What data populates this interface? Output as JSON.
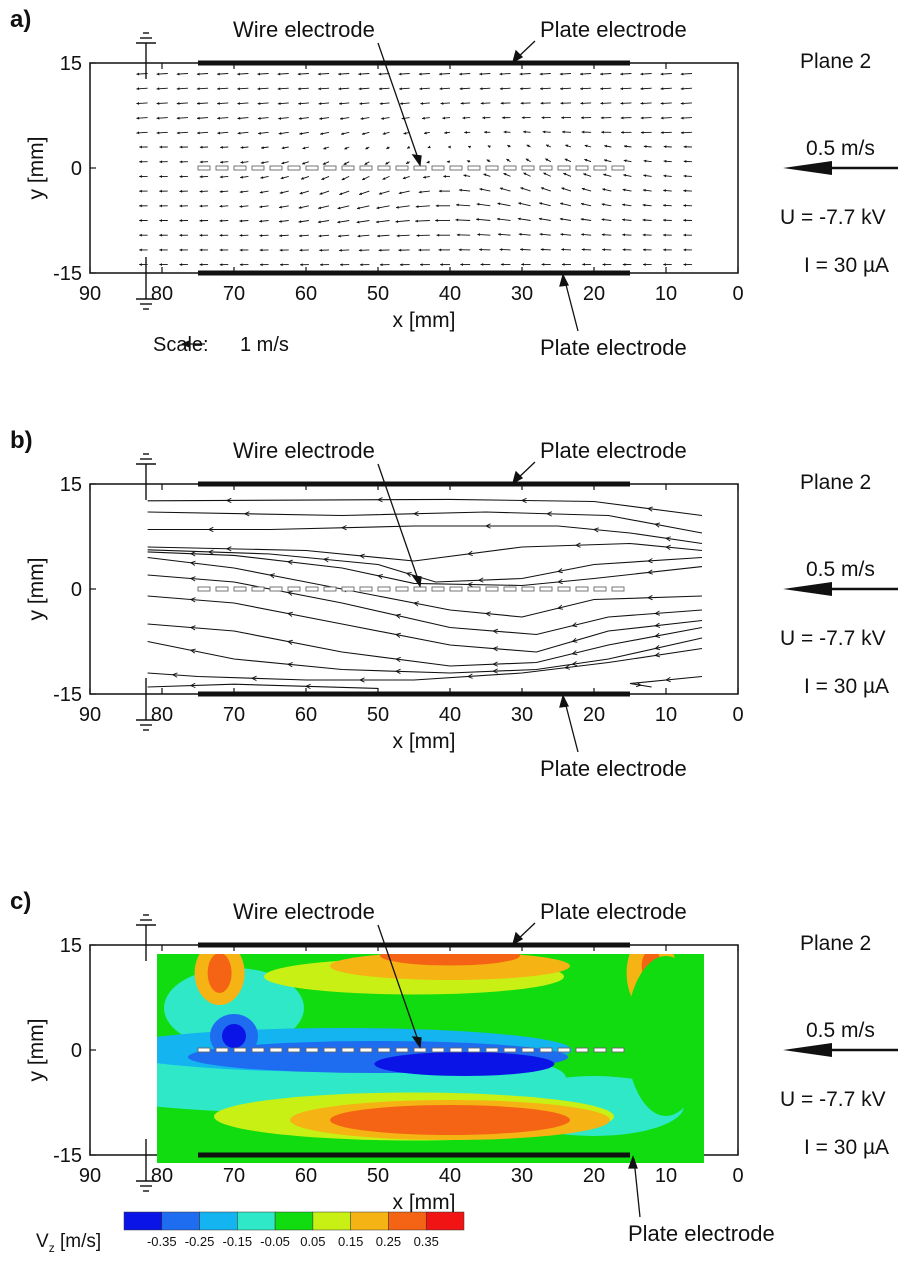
{
  "panels": [
    {
      "label": "a)",
      "kind": "vector",
      "wire_label": "Wire  electrode",
      "plate_top_label": "Plate  electrode",
      "plate_bottom_label": "Plate  electrode",
      "plane": "Plane 2",
      "ref_speed": "0.5 m/s",
      "voltage": "U = -7.7 kV",
      "current": "I = 30 µA",
      "xlabel": "x [mm]",
      "ylabel": "y [mm]",
      "scale_text": "Scale:",
      "scale_value": "1 m/s"
    },
    {
      "label": "b)",
      "kind": "streamline",
      "wire_label": "Wire  electrode",
      "plate_top_label": "Plate  electrode",
      "plate_bottom_label": "Plate  electrode",
      "plane": "Plane 2",
      "ref_speed": "0.5 m/s",
      "voltage": "U = -7.7 kV",
      "current": "I = 30 µA",
      "xlabel": "x [mm]",
      "ylabel": "y [mm]"
    },
    {
      "label": "c)",
      "kind": "contour",
      "wire_label": "Wire  electrode",
      "plate_top_label": "Plate  electrode",
      "plate_bottom_label": "Plate  electrode",
      "plane": "Plane 2",
      "ref_speed": "0.5 m/s",
      "voltage": "U = -7.7 kV",
      "current": "I = 30 µA",
      "xlabel": "x [mm]",
      "ylabel": "y [mm]",
      "colorbar_label_main": "V",
      "colorbar_label_sub": "z",
      "colorbar_label_unit": " [m/s]"
    }
  ],
  "chart_data": [
    {
      "type": "scatter",
      "subtype": "vector-field",
      "x_ticks": [
        "90",
        "80",
        "70",
        "60",
        "50",
        "40",
        "30",
        "20",
        "10",
        "0"
      ],
      "y_ticks": [
        "15",
        "0",
        "-15"
      ],
      "xlim": [
        90,
        0
      ],
      "ylim": [
        -15,
        15
      ],
      "plates_x": [
        75,
        15
      ],
      "wire_y": 0
    },
    {
      "type": "line",
      "subtype": "streamlines",
      "x_ticks": [
        "90",
        "80",
        "70",
        "60",
        "50",
        "40",
        "30",
        "20",
        "10",
        "0"
      ],
      "y_ticks": [
        "15",
        "0",
        "-15"
      ],
      "xlim": [
        90,
        0
      ],
      "ylim": [
        -15,
        15
      ]
    },
    {
      "type": "heatmap",
      "subtype": "contour",
      "x_ticks": [
        "90",
        "80",
        "70",
        "60",
        "50",
        "40",
        "30",
        "20",
        "10",
        "0"
      ],
      "y_ticks": [
        "15",
        "0",
        "-15"
      ],
      "xlim": [
        90,
        0
      ],
      "ylim": [
        -15,
        15
      ],
      "colorbar_ticks": [
        "-0.35",
        "-0.25",
        "-0.15",
        "-0.05",
        "0.05",
        "0.15",
        "0.25",
        "0.35"
      ],
      "colors": [
        "#0a14e6",
        "#1e6cf0",
        "#14b4f0",
        "#2ee8c8",
        "#10dc10",
        "#c8f014",
        "#f5b414",
        "#f56414",
        "#f01414"
      ]
    }
  ],
  "colors": {
    "axis": "#111111",
    "arrow": "#111111",
    "wire": "#999999"
  }
}
